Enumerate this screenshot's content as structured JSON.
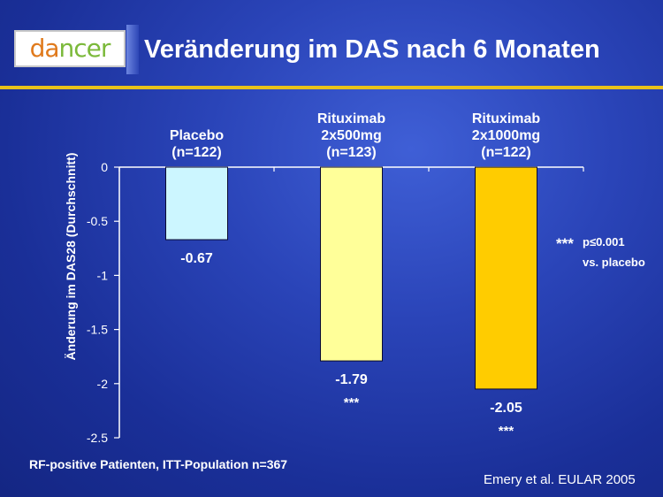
{
  "header": {
    "logo_text_a": "da",
    "logo_text_b": "ncer",
    "title": "Veränderung im DAS nach 6 Monaten"
  },
  "colors": {
    "background": "#2a44b8",
    "rule": "#e8c21a",
    "bar_placebo": "#ccf6ff",
    "bar_500": "#ffff99",
    "bar_1000": "#ffcc00"
  },
  "chart_data": {
    "type": "bar",
    "categories": [
      {
        "lines": [
          "Placebo",
          "(n=122)"
        ]
      },
      {
        "lines": [
          "Rituximab",
          "2x500mg",
          "(n=123)"
        ]
      },
      {
        "lines": [
          "Rituximab",
          "2x1000mg",
          "(n=122)"
        ]
      }
    ],
    "values": [
      -0.67,
      -1.79,
      -2.05
    ],
    "value_labels": [
      "-0.67",
      "-1.79",
      "-2.05"
    ],
    "significance": [
      "",
      "***",
      "***"
    ],
    "ylabel": "Änderung im DAS28 (Durchschnitt)",
    "yticks": [
      "0",
      "-0.5",
      "-1",
      "-1.5",
      "-2",
      "-2.5"
    ],
    "ylim": [
      -2.5,
      0
    ],
    "grid": false,
    "legend_note": {
      "marker": "***",
      "line1": "p≤0.001",
      "line2": "vs. placebo"
    }
  },
  "footer": {
    "footnote": "RF-positive Patienten, ITT-Population n=367",
    "citation": "Emery et al. EULAR 2005"
  }
}
